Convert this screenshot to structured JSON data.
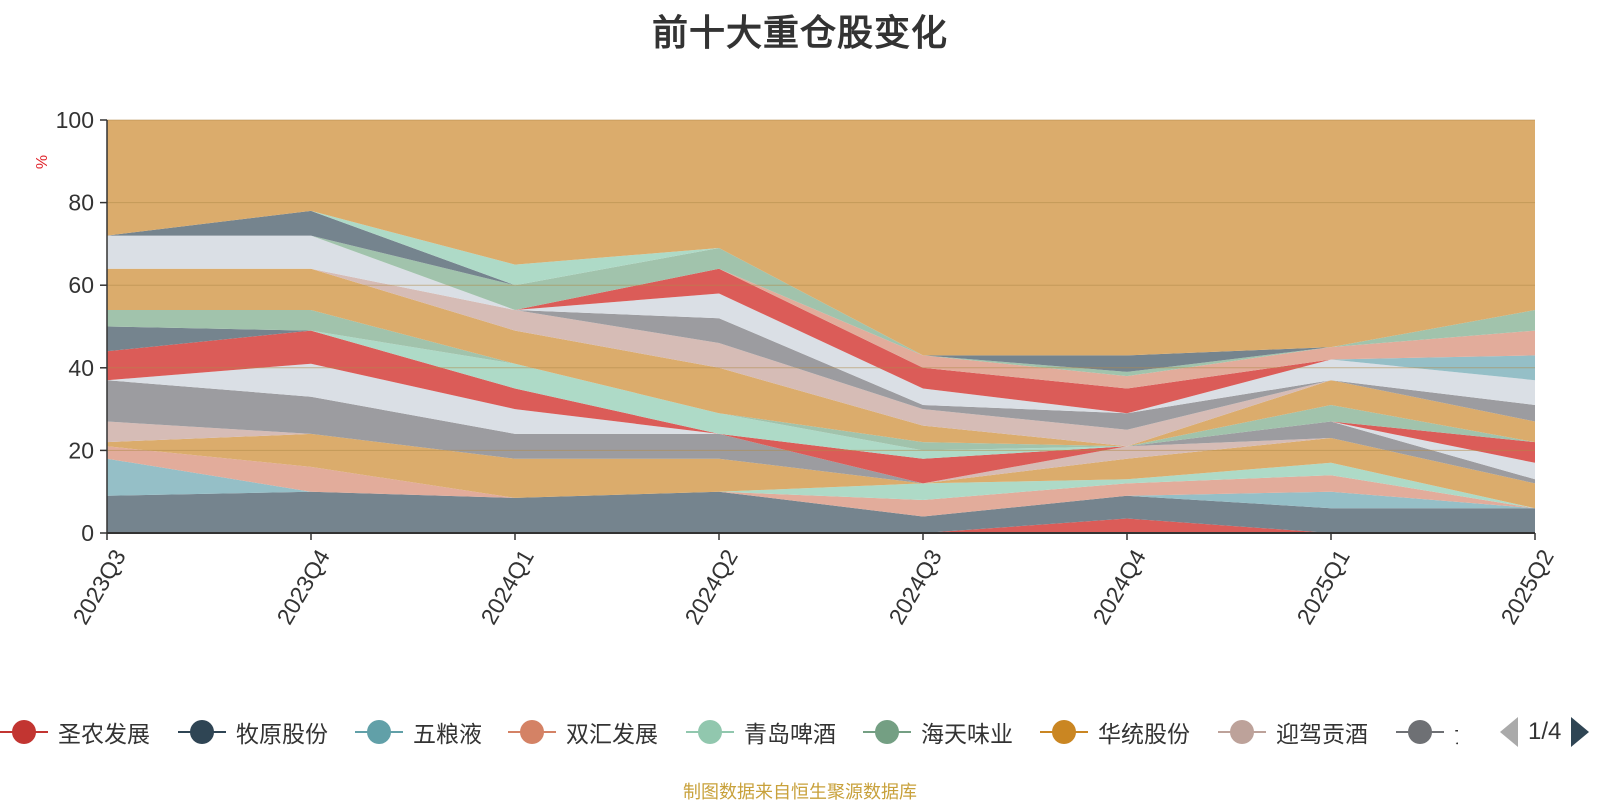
{
  "title": "前十大重仓股变化",
  "source_note": "制图数据来自恒生聚源数据库",
  "legend_page": "1/4",
  "chart_data": {
    "type": "area",
    "title": "前十大重仓股变化",
    "ylabel": "%",
    "ylim": [
      0,
      100
    ],
    "yticks": [
      0,
      20,
      40,
      60,
      80,
      100
    ],
    "categories": [
      "2023Q3",
      "2023Q4",
      "2024Q1",
      "2024Q2",
      "2024Q3",
      "2024Q4",
      "2025Q1",
      "2025Q2"
    ],
    "grid": "horizontal",
    "legend_position": "bottom",
    "bands": [
      {
        "lo": [
          0,
          0,
          0,
          0,
          0,
          0,
          0,
          0
        ],
        "hi": [
          0,
          0,
          0,
          0,
          0,
          3.5,
          0,
          0
        ],
        "color": "#d9534f"
      },
      {
        "lo": [
          0,
          0,
          0,
          0,
          0,
          3.5,
          0,
          0
        ],
        "hi": [
          9,
          10,
          8.5,
          10,
          4,
          9,
          6,
          6
        ],
        "color": "#6e7d88"
      },
      {
        "lo": [
          9,
          10,
          8.5,
          10,
          4,
          9,
          6,
          6
        ],
        "hi": [
          18,
          10,
          8.5,
          10,
          4,
          9,
          10,
          6
        ],
        "color": "#8fbcc4"
      },
      {
        "lo": [
          18,
          10,
          8.5,
          10,
          4,
          9,
          10,
          6
        ],
        "hi": [
          21,
          16,
          8.5,
          10,
          8,
          12,
          14,
          6
        ],
        "color": "#e0a896"
      },
      {
        "lo": [
          21,
          16,
          8.5,
          10,
          8,
          12,
          14,
          6
        ],
        "hi": [
          21,
          16,
          8.5,
          10,
          12,
          13,
          17,
          6
        ],
        "color": "#aad8c4"
      },
      {
        "lo": [
          21,
          16,
          8.5,
          10,
          12,
          13,
          17,
          6
        ],
        "hi": [
          22,
          24,
          18,
          18,
          12,
          18,
          23,
          12
        ],
        "color": "#d9a864"
      },
      {
        "lo": [
          22,
          24,
          18,
          18,
          12,
          18,
          23,
          12
        ],
        "hi": [
          27,
          24,
          18,
          18,
          12,
          21,
          23,
          12
        ],
        "color": "#d4b8b2"
      },
      {
        "lo": [
          27,
          24,
          18,
          18,
          12,
          21,
          23,
          12
        ],
        "hi": [
          37,
          33,
          24,
          24,
          12,
          21,
          27,
          13
        ],
        "color": "#97979b"
      },
      {
        "lo": [
          37,
          33,
          24,
          24,
          12,
          21,
          27,
          13
        ],
        "hi": [
          37,
          41,
          30,
          24,
          12,
          21,
          27,
          17
        ],
        "color": "#d8dde4"
      },
      {
        "lo": [
          37,
          41,
          30,
          24,
          12,
          21,
          27,
          17
        ],
        "hi": [
          44,
          49,
          35,
          24,
          18,
          21,
          27,
          22
        ],
        "color": "#d9534f"
      },
      {
        "lo": [
          44,
          49,
          35,
          24,
          18,
          21,
          27,
          22
        ],
        "hi": [
          50,
          49,
          35,
          24,
          18,
          21,
          27,
          22
        ],
        "color": "#6e7d88"
      },
      {
        "lo": [
          50,
          49,
          35,
          24,
          18,
          21,
          27,
          22
        ],
        "hi": [
          50,
          49,
          41,
          29,
          20,
          21,
          27,
          22
        ],
        "color": "#aad8c4"
      },
      {
        "lo": [
          50,
          49,
          41,
          29,
          20,
          21,
          27,
          22
        ],
        "hi": [
          54,
          54,
          41,
          29,
          22,
          21,
          31,
          22
        ],
        "color": "#9cc0a8"
      },
      {
        "lo": [
          54,
          54,
          41,
          29,
          22,
          21,
          31,
          22
        ],
        "hi": [
          64,
          64,
          49,
          40,
          26,
          21,
          37,
          27
        ],
        "color": "#d9a864"
      },
      {
        "lo": [
          64,
          64,
          49,
          40,
          26,
          21,
          37,
          27
        ],
        "hi": [
          64,
          64,
          54,
          46,
          30,
          25,
          37,
          27
        ],
        "color": "#d4b8b2"
      },
      {
        "lo": [
          64,
          64,
          54,
          46,
          30,
          25,
          37,
          27
        ],
        "hi": [
          64,
          64,
          54,
          52,
          31,
          29,
          37,
          31
        ],
        "color": "#97979b"
      },
      {
        "lo": [
          64,
          64,
          54,
          52,
          31,
          29,
          37,
          31
        ],
        "hi": [
          72,
          72,
          54,
          58,
          35,
          29,
          42,
          37
        ],
        "color": "#d8dde4"
      },
      {
        "lo": [
          72,
          72,
          54,
          58,
          35,
          29,
          42,
          37
        ],
        "hi": [
          72,
          72,
          54,
          64,
          40,
          35,
          42,
          37
        ],
        "color": "#d9534f"
      },
      {
        "lo": [
          72,
          72,
          54,
          64,
          40,
          35,
          42,
          37
        ],
        "hi": [
          72,
          72,
          54,
          64,
          40,
          35,
          42,
          43
        ],
        "color": "#8fbcc4"
      },
      {
        "lo": [
          72,
          72,
          54,
          64,
          40,
          35,
          42,
          43
        ],
        "hi": [
          72,
          72,
          54,
          64,
          43,
          38,
          45,
          49
        ],
        "color": "#e0a896"
      },
      {
        "lo": [
          72,
          72,
          54,
          64,
          43,
          38,
          45,
          49
        ],
        "hi": [
          72,
          72,
          60,
          69,
          43,
          39,
          45,
          54
        ],
        "color": "#9cc0a8"
      },
      {
        "lo": [
          72,
          72,
          60,
          69,
          43,
          39,
          45,
          54
        ],
        "hi": [
          72,
          78,
          60,
          69,
          43,
          43,
          45,
          54
        ],
        "color": "#6e7d88"
      },
      {
        "lo": [
          72,
          78,
          60,
          69,
          43,
          43,
          45,
          54
        ],
        "hi": [
          72,
          78,
          65,
          69,
          43,
          43,
          45,
          54
        ],
        "color": "#aad8c4"
      },
      {
        "lo": [
          72,
          78,
          65,
          69,
          43,
          43,
          45,
          54
        ],
        "hi": [
          100,
          100,
          100,
          100,
          100,
          100,
          100,
          100
        ],
        "color": "#d9a864"
      }
    ],
    "series": [
      {
        "name": "圣农发展",
        "color": "#c23531"
      },
      {
        "name": "牧原股份",
        "color": "#2f4554"
      },
      {
        "name": "五粮液",
        "color": "#61a0a8"
      },
      {
        "name": "双汇发展",
        "color": "#d48265"
      },
      {
        "name": "青岛啤酒",
        "color": "#91c7ae"
      },
      {
        "name": "海天味业",
        "color": "#749f83"
      },
      {
        "name": "华统股份",
        "color": "#ca8622"
      },
      {
        "name": "迎驾贡酒",
        "color": "#bda29a"
      },
      {
        "name": "贵州茅台",
        "color": "#6e7074"
      }
    ]
  }
}
